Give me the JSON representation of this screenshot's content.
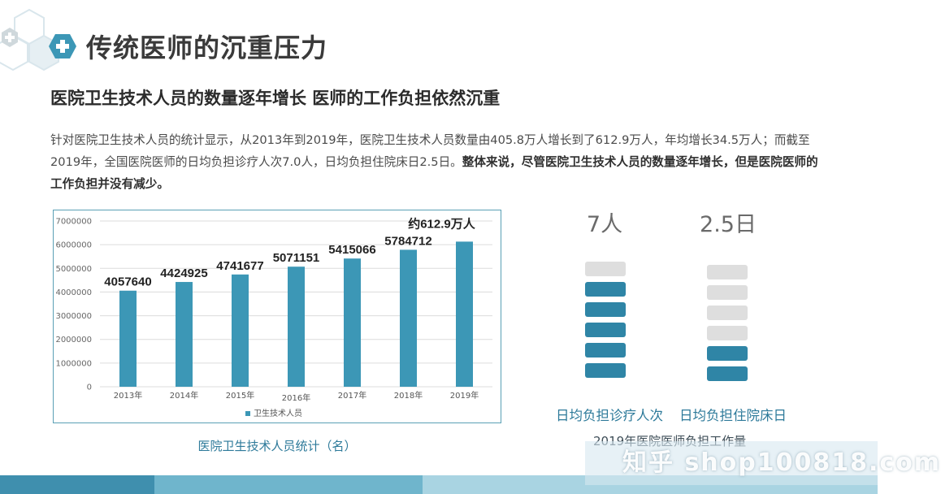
{
  "header": {
    "title": "传统医师的沉重压力",
    "subtitle": "医院卫生技术人员的数量逐年增长 医师的工作负担依然沉重"
  },
  "paragraph": {
    "normal": "针对医院卫生技术人员的统计显示，从2013年到2019年，医院卫生技术人员数量由405.8万人增长到了612.9万人，年均增长34.5万人；而截至2019年，全国医院医师的日均负担诊疗人次7.0人，日均负担住院床日2.5日。",
    "bold": "整体来说，尽管医院卫生技术人员的数量逐年增长，但是医院医师的工作负担并没有减少。"
  },
  "chart_data": {
    "type": "bar",
    "categories": [
      "2013年",
      "2014年",
      "2015年",
      "2016年",
      "2017年",
      "2018年",
      "2019年"
    ],
    "series": [
      {
        "name": "卫生技术人员",
        "values": [
          4057640,
          4424925,
          4741677,
          5071151,
          5415066,
          5784712,
          6129000
        ]
      }
    ],
    "data_labels": [
      "4057640",
      "4424925",
      "4741677",
      "5071151",
      "5415066",
      "5784712",
      "约612.9万人"
    ],
    "y_ticks": [
      "0",
      "1000000",
      "2000000",
      "3000000",
      "4000000",
      "5000000",
      "6000000",
      "7000000"
    ],
    "ylim": [
      0,
      7000000
    ],
    "grid": true,
    "legend_position": "bottom",
    "color": "#3c97b6",
    "caption": "医院卫生技术人员统计（名）"
  },
  "workload": {
    "items": [
      {
        "value": "7人",
        "label": "日均负担诊疗人次",
        "filled": 5,
        "total": 6
      },
      {
        "value": "2.5日",
        "label": "日均负担住院床日",
        "filled": 2,
        "total": 6
      }
    ],
    "caption": "2019年医院医师负担工作量"
  },
  "watermark": {
    "text": "知乎 shop100818.com"
  },
  "colors": {
    "accent": "#2f85a6",
    "title": "#3a3a3a",
    "caption": "#2d7a9a"
  }
}
